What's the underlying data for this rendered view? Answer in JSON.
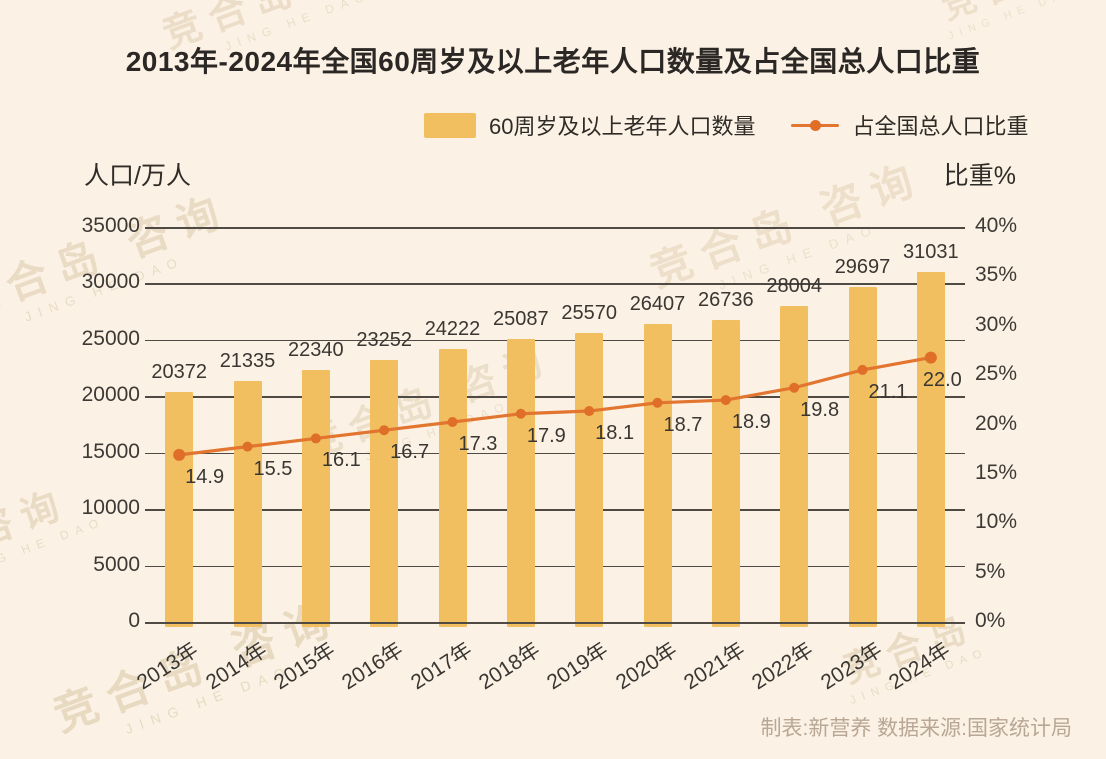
{
  "title": "2013年-2024年全国60周岁及以上老年人口数量及占全国总人口比重",
  "legend": {
    "bar_label": "60周岁及以上老年人口数量",
    "line_label": "占全国总人口比重"
  },
  "left_axis_title": "人口/万人",
  "right_axis_title": "比重%",
  "footer": "制表:新营养 数据来源:国家统计局",
  "watermark": {
    "brand": "竞合岛",
    "suffix": "咨询",
    "latin": "JING HE DAO"
  },
  "colors": {
    "background": "#FBF2E5",
    "bar": "#F1BF60",
    "line": "#E2752F",
    "dot": "#DF6E28",
    "grid": "#4F4A44",
    "text": "#3A3632",
    "footer_text": "#B9A795",
    "watermark": "#D9C5A4"
  },
  "chart_data": {
    "type": "bar",
    "title": "2013年-2024年全国60周岁及以上老年人口数量及占全国总人口比重",
    "categories": [
      "2013年",
      "2014年",
      "2015年",
      "2016年",
      "2017年",
      "2018年",
      "2019年",
      "2020年",
      "2021年",
      "2022年",
      "2023年",
      "2024年"
    ],
    "series": [
      {
        "name": "60周岁及以上老年人口数量",
        "type": "bar",
        "axis": "left",
        "color": "#F1BF60",
        "values": [
          20372,
          21335,
          22340,
          23252,
          24222,
          25087,
          25570,
          26407,
          26736,
          28004,
          29697,
          31031
        ]
      },
      {
        "name": "占全国总人口比重",
        "type": "line",
        "axis": "right",
        "color": "#E2752F",
        "values": [
          14.9,
          15.5,
          16.1,
          16.7,
          17.3,
          17.9,
          18.1,
          18.7,
          18.9,
          19.8,
          21.1,
          22.0
        ],
        "labels": [
          "14.9",
          "15.5",
          "16.1",
          "16.7",
          "17.3",
          "17.9",
          "18.1",
          "18.7",
          "18.9",
          "19.8",
          "21.1",
          "22.0"
        ]
      }
    ],
    "left_axis": {
      "title": "人口/万人",
      "min": 0,
      "max": 35000,
      "ticks": [
        0,
        5000,
        10000,
        15000,
        20000,
        25000,
        30000,
        35000
      ]
    },
    "right_axis": {
      "title": "比重%",
      "min": 0,
      "max": 40,
      "ticks": [
        "0%",
        "5%",
        "10%",
        "15%",
        "20%",
        "25%",
        "30%",
        "35%",
        "40%"
      ]
    },
    "grid": true,
    "legend_position": "top"
  }
}
